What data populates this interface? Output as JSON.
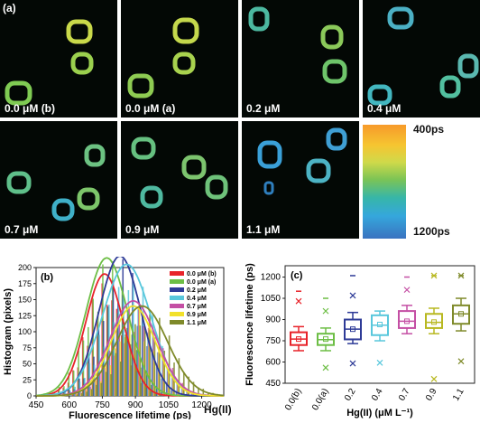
{
  "panel_a": {
    "letter": "(a)",
    "tiles": [
      {
        "label": "0.0 μM (b)"
      },
      {
        "label": "0.0 μM (a)"
      },
      {
        "label": "0.2 μM"
      },
      {
        "label": "0.4 μM"
      },
      {
        "label": "0.7 μM"
      },
      {
        "label": "0.9 μM"
      },
      {
        "label": "1.1 μM"
      }
    ],
    "colorbar": {
      "top_label": "400ps",
      "bottom_label": "1200ps"
    }
  },
  "bottom_label": "Hg(II)",
  "chart_data": [
    {
      "panel": "(b)",
      "type": "bar",
      "xlabel": "Fluorescence lifetime (ps)",
      "ylabel": "Histogram (pixels)",
      "xlim": [
        450,
        1300
      ],
      "ylim": [
        0,
        200
      ],
      "xticks": [
        450,
        600,
        750,
        900,
        1050,
        1200
      ],
      "yticks": [
        0,
        25,
        50,
        75,
        100,
        125,
        150,
        175,
        200
      ],
      "legend_position": "top-right",
      "series": [
        {
          "name": "0.0 μM (b)",
          "color": "#e8232a",
          "mean": 760,
          "sd": 85,
          "peak": 190
        },
        {
          "name": "0.0 μM (a)",
          "color": "#6dbe45",
          "mean": 770,
          "sd": 95,
          "peak": 215
        },
        {
          "name": "0.2 μM",
          "color": "#2e3b97",
          "mean": 830,
          "sd": 95,
          "peak": 218
        },
        {
          "name": "0.4 μM",
          "color": "#58c7dc",
          "mean": 860,
          "sd": 110,
          "peak": 205
        },
        {
          "name": "0.7 μM",
          "color": "#c44fa4",
          "mean": 890,
          "sd": 105,
          "peak": 148
        },
        {
          "name": "0.9 μM",
          "color": "#f2e12b",
          "mean": 890,
          "sd": 100,
          "peak": 140
        },
        {
          "name": "1.1 μM",
          "color": "#7f8a2a",
          "mean": 930,
          "sd": 115,
          "peak": 140
        }
      ]
    },
    {
      "panel": "(c)",
      "type": "box",
      "xlabel": "Hg(II) (μM L⁻¹)",
      "ylabel": "Fluorescence lifetime (ps)",
      "ylim": [
        450,
        1280
      ],
      "yticks": [
        450,
        600,
        750,
        900,
        1050,
        1200
      ],
      "categories": [
        "0.0(b)",
        "0.0(a)",
        "0.2",
        "0.4",
        "0.7",
        "0.9",
        "1.1"
      ],
      "boxes": [
        {
          "color": "#e8232a",
          "whisker_low": 680,
          "q1": 720,
          "median": 762,
          "mean": 762,
          "q3": 810,
          "whisker_high": 850,
          "max": 1100,
          "max_x": 1030,
          "min_x": null
        },
        {
          "color": "#6dbe45",
          "whisker_low": 680,
          "q1": 720,
          "median": 758,
          "mean": 762,
          "q3": 800,
          "whisker_high": 840,
          "max": 1050,
          "max_x": 960,
          "min_x": 560
        },
        {
          "color": "#2e3b97",
          "whisker_low": 730,
          "q1": 760,
          "median": 832,
          "mean": 832,
          "q3": 900,
          "whisker_high": 950,
          "max": 1210,
          "max_x": 1070,
          "min_x": 590
        },
        {
          "color": "#58c7dc",
          "whisker_low": 750,
          "q1": 790,
          "median": 860,
          "mean": 865,
          "q3": 930,
          "whisker_high": 960,
          "max": null,
          "max_x": null,
          "min_x": 595
        },
        {
          "color": "#c44fa4",
          "whisker_low": 800,
          "q1": 840,
          "median": 888,
          "mean": 888,
          "q3": 960,
          "whisker_high": 1000,
          "max": 1200,
          "max_x": 1110,
          "min_x": null
        },
        {
          "color": "#b8b820",
          "whisker_low": 800,
          "q1": 840,
          "median": 880,
          "mean": 882,
          "q3": 940,
          "whisker_high": 980,
          "max": 1210,
          "max_x": 1210,
          "min_x": 480
        },
        {
          "color": "#7f8a2a",
          "whisker_low": 820,
          "q1": 870,
          "median": 940,
          "mean": 940,
          "q3": 1000,
          "whisker_high": 1050,
          "max": 1210,
          "max_x": 1210,
          "min_x": 605
        }
      ]
    }
  ]
}
